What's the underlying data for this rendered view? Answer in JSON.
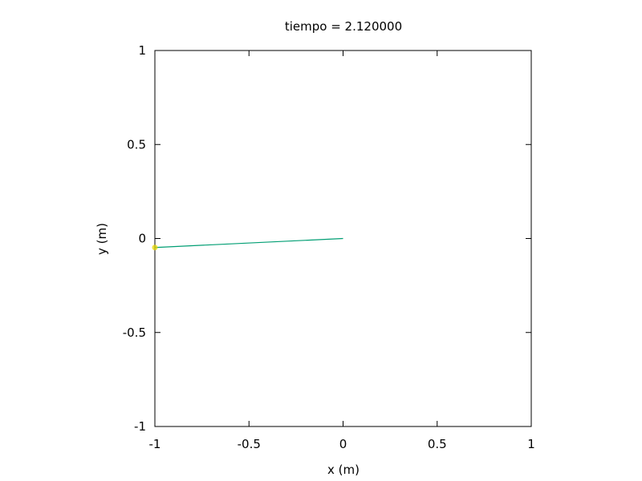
{
  "chart_data": {
    "type": "line",
    "title": "tiempo = 2.120000",
    "xlabel": "x (m)",
    "ylabel": "y (m)",
    "xlim": [
      -1,
      1
    ],
    "ylim": [
      -1,
      1
    ],
    "grid": false,
    "x_ticks": [
      {
        "value": -1,
        "label": "-1"
      },
      {
        "value": -0.5,
        "label": "-0.5"
      },
      {
        "value": 0,
        "label": "0"
      },
      {
        "value": 0.5,
        "label": "0.5"
      },
      {
        "value": 1,
        "label": "1"
      }
    ],
    "y_ticks": [
      {
        "value": -1,
        "label": "-1"
      },
      {
        "value": -0.5,
        "label": "-0.5"
      },
      {
        "value": 0,
        "label": "0"
      },
      {
        "value": 0.5,
        "label": "0.5"
      },
      {
        "value": 1,
        "label": "1"
      }
    ],
    "series": [
      {
        "kind": "rod",
        "color": "#009e73",
        "points": [
          {
            "x": 0,
            "y": 0
          },
          {
            "x": -1.0,
            "y": -0.048
          }
        ]
      },
      {
        "kind": "bob",
        "color": "#e6d600",
        "points": [
          {
            "x": -1.0,
            "y": -0.048
          }
        ]
      }
    ]
  }
}
